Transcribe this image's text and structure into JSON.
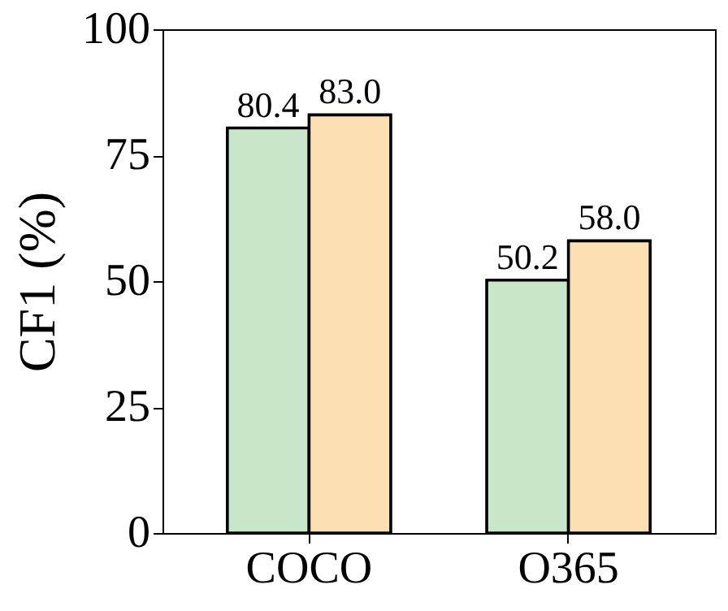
{
  "chart_data": {
    "type": "bar",
    "ylabel": "CF1 (%)",
    "categories": [
      "COCO",
      "O365"
    ],
    "series": [
      {
        "color": "#c8e6c9",
        "values": [
          80.4,
          50.2
        ],
        "value_labels": [
          "80.4",
          "50.2"
        ]
      },
      {
        "color": "#fde0b2",
        "values": [
          83.0,
          58.0
        ],
        "value_labels": [
          "83.0",
          "58.0"
        ]
      }
    ],
    "ylim": [
      0,
      100
    ],
    "yticks": [
      0,
      25,
      50,
      75,
      100
    ]
  }
}
